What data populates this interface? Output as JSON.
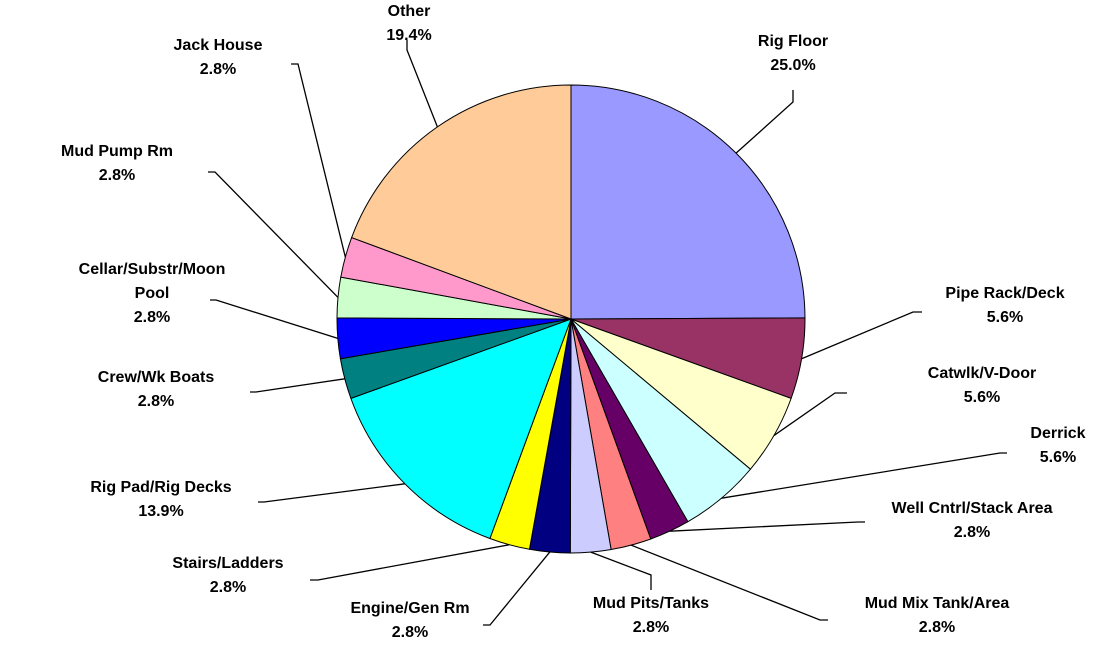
{
  "chart_data": {
    "type": "pie",
    "categories": [
      "Rig Floor",
      "Pipe Rack/Deck",
      "Catwlk/V-Door",
      "Derrick",
      "Well Cntrl/Stack Area",
      "Mud Mix Tank/Area",
      "Mud Pits/Tanks",
      "Engine/Gen Rm",
      "Stairs/Ladders",
      "Rig Pad/Rig Decks",
      "Crew/Wk Boats",
      "Cellar/Substr/Moon Pool",
      "Mud Pump Rm",
      "Jack House",
      "Other"
    ],
    "values": [
      25.0,
      5.6,
      5.6,
      5.6,
      2.8,
      2.8,
      2.8,
      2.8,
      2.8,
      13.9,
      2.8,
      2.8,
      2.8,
      2.8,
      19.4
    ],
    "value_labels": [
      "25.0%",
      "5.6%",
      "5.6%",
      "5.6%",
      "2.8%",
      "2.8%",
      "2.8%",
      "2.8%",
      "2.8%",
      "13.9%",
      "2.8%",
      "2.8%",
      "2.8%",
      "2.8%",
      "19.4%"
    ],
    "colors": [
      "#9999FF",
      "#993366",
      "#FFFFCC",
      "#CCFFFF",
      "#660066",
      "#FF8080",
      "#CCCCFF",
      "#000080",
      "#FFFF00",
      "#00FFFF",
      "#008080",
      "#0000FF",
      "#CCFFCC",
      "#FF99CC",
      "#FFCC99"
    ]
  }
}
